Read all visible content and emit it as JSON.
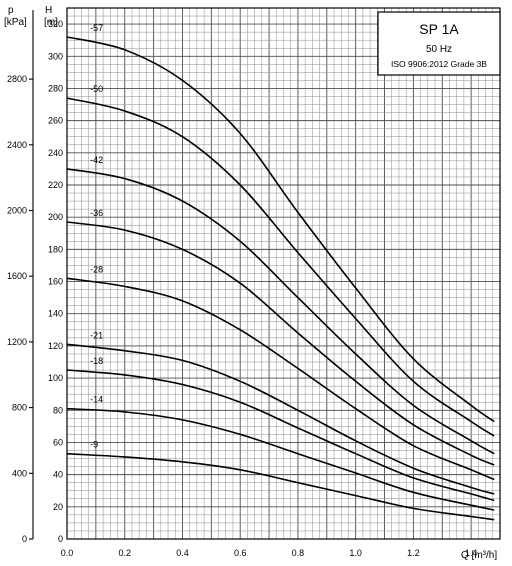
{
  "chart_data": {
    "type": "line",
    "title": "SP 1A",
    "info_lines": [
      "50 Hz",
      "ISO 9906:2012 Grade 3B"
    ],
    "xlabel": "Q [m³/h]",
    "ylabel_left": [
      "p",
      "[kPa]"
    ],
    "ylabel_right": [
      "H",
      "[m]"
    ],
    "xlim": [
      0,
      1.5
    ],
    "ylim_head": [
      0,
      330
    ],
    "ylim_pressure": [
      0,
      3233
    ],
    "x_ticks": [
      "0.0",
      "0.2",
      "0.4",
      "0.6",
      "0.8",
      "1.0",
      "1.2",
      "1.4"
    ],
    "head_ticks": [
      "0",
      "20",
      "40",
      "60",
      "80",
      "100",
      "120",
      "140",
      "160",
      "180",
      "200",
      "220",
      "240",
      "260",
      "280",
      "300",
      "320"
    ],
    "pressure_ticks": [
      "0",
      "400",
      "800",
      "1200",
      "1600",
      "2000",
      "2400",
      "2800"
    ],
    "grid": true,
    "series": [
      {
        "name": "-57",
        "x": [
          0,
          0.2,
          0.4,
          0.6,
          0.8,
          1.0,
          1.2,
          1.4,
          1.48
        ],
        "y": [
          312,
          304,
          285,
          252,
          203,
          156,
          112,
          83,
          73
        ]
      },
      {
        "name": "-50",
        "x": [
          0,
          0.2,
          0.4,
          0.6,
          0.8,
          1.0,
          1.2,
          1.4,
          1.48
        ],
        "y": [
          274,
          266,
          250,
          220,
          178,
          137,
          98,
          73,
          64
        ]
      },
      {
        "name": "-42",
        "x": [
          0,
          0.2,
          0.4,
          0.6,
          0.8,
          1.0,
          1.2,
          1.4,
          1.48
        ],
        "y": [
          230,
          224,
          210,
          185,
          150,
          115,
          83,
          61,
          53
        ]
      },
      {
        "name": "-36",
        "x": [
          0,
          0.2,
          0.4,
          0.6,
          0.8,
          1.0,
          1.2,
          1.4,
          1.48
        ],
        "y": [
          197,
          192,
          180,
          159,
          128,
          98,
          71,
          52,
          46
        ]
      },
      {
        "name": "-28",
        "x": [
          0,
          0.2,
          0.4,
          0.6,
          0.8,
          1.0,
          1.2,
          1.4,
          1.48
        ],
        "y": [
          162,
          157,
          148,
          130,
          106,
          81,
          58,
          43,
          37
        ]
      },
      {
        "name": "-21",
        "x": [
          0,
          0.2,
          0.4,
          0.6,
          0.8,
          1.0,
          1.2,
          1.4,
          1.48
        ],
        "y": [
          121,
          117,
          111,
          98,
          80,
          61,
          44,
          32,
          28
        ]
      },
      {
        "name": "-18",
        "x": [
          0,
          0.2,
          0.4,
          0.6,
          0.8,
          1.0,
          1.2,
          1.4,
          1.48
        ],
        "y": [
          105,
          102,
          96,
          85,
          69,
          53,
          38,
          28,
          24
        ]
      },
      {
        "name": "-14",
        "x": [
          0,
          0.2,
          0.4,
          0.6,
          0.8,
          1.0,
          1.2,
          1.4,
          1.48
        ],
        "y": [
          81,
          79,
          74,
          65,
          53,
          41,
          29,
          21,
          18
        ]
      },
      {
        "name": "-9",
        "x": [
          0,
          0.2,
          0.4,
          0.6,
          0.8,
          1.0,
          1.2,
          1.4,
          1.48
        ],
        "y": [
          53,
          51,
          48,
          43,
          35,
          27,
          19,
          14,
          12
        ]
      }
    ]
  }
}
